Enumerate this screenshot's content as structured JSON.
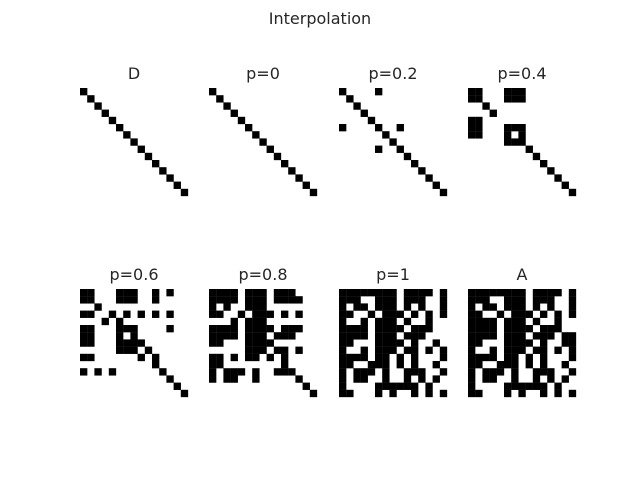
{
  "chart_data": {
    "type": "heatmap",
    "title": "Interpolation",
    "colormap": [
      "#ffffff",
      "#000000"
    ],
    "grid_size": 15,
    "panels": [
      {
        "label": "D",
        "cells": [
          "100000000000000",
          "010000000000000",
          "001000000000000",
          "000100000000000",
          "000010000000000",
          "000001000000000",
          "000000100000000",
          "000000010000000",
          "000000001000000",
          "000000000100000",
          "000000000010000",
          "000000000001000",
          "000000000000100",
          "000000000000010",
          "000000000000001"
        ]
      },
      {
        "label": "p=0",
        "cells": [
          "100000000000000",
          "010000000000000",
          "001000000000000",
          "000100000000000",
          "000010000000000",
          "000001000000000",
          "000000100000000",
          "000000010000000",
          "000000001000000",
          "000000000100000",
          "000000000010000",
          "000000000001000",
          "000000000000100",
          "000000000000010",
          "000000000000001"
        ]
      },
      {
        "label": "p=0.2",
        "cells": [
          "100001000000000",
          "010000000000000",
          "001000000000000",
          "000100000000000",
          "000010000000000",
          "100001001000000",
          "000000100000000",
          "000000010000000",
          "000001001000000",
          "000000000100000",
          "000000000010000",
          "000000000001000",
          "000000000000100",
          "000000000000010",
          "000000000000001"
        ]
      },
      {
        "label": "p=0.4",
        "cells": [
          "110001110000000",
          "110001110000000",
          "001000000000000",
          "000100000000000",
          "110000000000000",
          "110001110000000",
          "110001010000000",
          "000001110000000",
          "000000001000000",
          "000000000100000",
          "000000000010000",
          "000000000001000",
          "000000000000100",
          "000000000000010",
          "000000000000001"
        ]
      },
      {
        "label": "p=0.6",
        "cells": [
          "110001110010100",
          "110001110010000",
          "001000000000000",
          "110010101010100",
          "000101000000000",
          "110001110000100",
          "110001010000000",
          "110001111000000",
          "000001110100000",
          "110000001010000",
          "000000000010000",
          "101010000001000",
          "000000000000100",
          "000000000000010",
          "000000000000001"
        ]
      },
      {
        "label": "p=0.8",
        "cells": [
          "111101110111000",
          "111101110111100",
          "101001110000000",
          "110010111010100",
          "000101110000000",
          "111101111011100",
          "111101110111000",
          "110001111000000",
          "000001110110100",
          "110101101010000",
          "110000000010000",
          "101110100111000",
          "101100100000100",
          "000000000000010",
          "000000000000001"
        ]
      },
      {
        "label": "p=1",
        "cells": [
          "111111110111101",
          "111001110111001",
          "101101110101001",
          "110010111010101",
          "100101110100100",
          "111101111011100",
          "111101110111000",
          "110001111010010",
          "100101110110101",
          "111101101010001",
          "110011101010010",
          "101110100111001",
          "101100100101010",
          "100001111110100",
          "110001010010101"
        ]
      },
      {
        "label": "A",
        "cells": [
          "111111110111101",
          "111001110111001",
          "101101110101001",
          "110010111010101",
          "111101110100100",
          "111101111011100",
          "111101110111011",
          "110001111010011",
          "100101110110101",
          "111101101010001",
          "110011101010010",
          "101110100111001",
          "101100100101010",
          "100001111110100",
          "110001010010101"
        ]
      }
    ]
  }
}
